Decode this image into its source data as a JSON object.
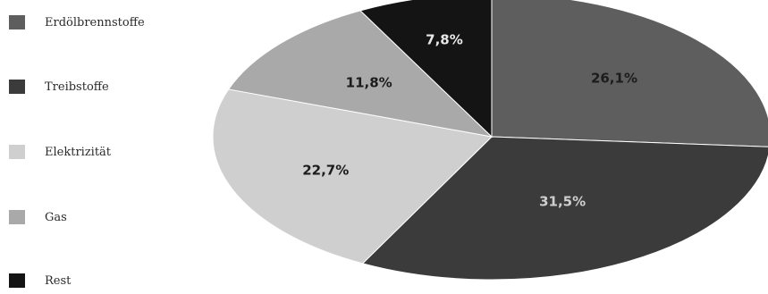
{
  "chart_data": {
    "type": "pie",
    "categories": [
      "Erdölbrennstoffe",
      "Treibstoffe",
      "Elektrizität",
      "Gas",
      "Rest"
    ],
    "values": [
      26.1,
      31.5,
      22.7,
      11.8,
      7.8
    ],
    "value_labels": [
      "26,1%",
      "31,5%",
      "22,7%",
      "11,8%",
      "7,8%"
    ],
    "colors": [
      "#5e5e5e",
      "#3b3b3b",
      "#cfcfcf",
      "#a9a9a9",
      "#141414"
    ],
    "label_colors": [
      "#1c1c1c",
      "#cfcfcf",
      "#1c1c1c",
      "#1c1c1c",
      "#e8e8e8"
    ],
    "title": "",
    "legend_position": "left"
  }
}
